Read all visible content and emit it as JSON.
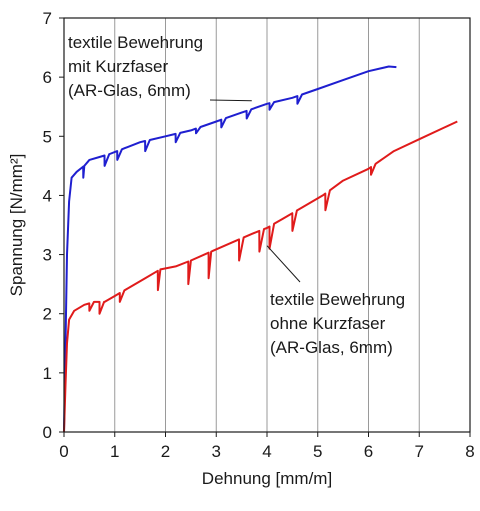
{
  "chart_data": {
    "type": "line",
    "xlabel": "Dehnung [mm/m]",
    "ylabel": "Spannung [N/mm²]",
    "xlim": [
      0,
      8
    ],
    "ylim": [
      0,
      7
    ],
    "xticks": [
      "0",
      "1",
      "2",
      "3",
      "4",
      "5",
      "6",
      "7",
      "8"
    ],
    "yticks": [
      "0",
      "1",
      "2",
      "3",
      "4",
      "5",
      "6",
      "7"
    ],
    "grid": "vertical",
    "series": [
      {
        "name": "textile Bewehrung mit Kurzfaser (AR-Glas, 6mm)",
        "color": "#1f1fd0",
        "points": [
          [
            0,
            0
          ],
          [
            0.03,
            1.5
          ],
          [
            0.06,
            3.0
          ],
          [
            0.1,
            3.9
          ],
          [
            0.15,
            4.3
          ],
          [
            0.25,
            4.4
          ],
          [
            0.4,
            4.5
          ],
          [
            0.5,
            4.6
          ],
          [
            0.7,
            4.65
          ],
          [
            0.9,
            4.7
          ],
          [
            1.2,
            4.8
          ],
          [
            1.5,
            4.9
          ],
          [
            2.0,
            5.0
          ],
          [
            2.5,
            5.1
          ],
          [
            3.0,
            5.25
          ],
          [
            3.5,
            5.4
          ],
          [
            4.0,
            5.55
          ],
          [
            4.5,
            5.65
          ],
          [
            5.0,
            5.8
          ],
          [
            5.5,
            5.95
          ],
          [
            6.0,
            6.1
          ],
          [
            6.4,
            6.18
          ],
          [
            6.55,
            6.17
          ]
        ],
        "drops": [
          [
            0.38,
            4.3
          ],
          [
            0.8,
            4.5
          ],
          [
            1.05,
            4.6
          ],
          [
            1.6,
            4.75
          ],
          [
            2.2,
            4.9
          ],
          [
            2.6,
            5.05
          ],
          [
            3.1,
            5.15
          ],
          [
            3.6,
            5.3
          ],
          [
            4.05,
            5.45
          ],
          [
            4.6,
            5.55
          ]
        ]
      },
      {
        "name": "textile Bewehrung ohne Kurzfaser (AR-Glas, 6mm)",
        "color": "#e01b1b",
        "points": [
          [
            0,
            0
          ],
          [
            0.03,
            0.8
          ],
          [
            0.06,
            1.5
          ],
          [
            0.1,
            1.9
          ],
          [
            0.2,
            2.05
          ],
          [
            0.4,
            2.15
          ],
          [
            0.6,
            2.2
          ],
          [
            0.8,
            2.2
          ],
          [
            1.0,
            2.3
          ],
          [
            1.3,
            2.45
          ],
          [
            1.6,
            2.6
          ],
          [
            1.9,
            2.75
          ],
          [
            2.2,
            2.8
          ],
          [
            2.5,
            2.9
          ],
          [
            2.9,
            3.05
          ],
          [
            3.3,
            3.2
          ],
          [
            3.7,
            3.35
          ],
          [
            4.0,
            3.45
          ],
          [
            4.3,
            3.6
          ],
          [
            4.7,
            3.8
          ],
          [
            5.1,
            4.0
          ],
          [
            5.5,
            4.25
          ],
          [
            6.0,
            4.45
          ],
          [
            6.5,
            4.75
          ],
          [
            7.0,
            4.95
          ],
          [
            7.5,
            5.15
          ],
          [
            7.75,
            5.25
          ]
        ],
        "drops": [
          [
            0.5,
            2.05
          ],
          [
            0.7,
            2.0
          ],
          [
            1.1,
            2.2
          ],
          [
            1.85,
            2.4
          ],
          [
            2.45,
            2.5
          ],
          [
            2.85,
            2.6
          ],
          [
            3.45,
            2.9
          ],
          [
            3.85,
            3.05
          ],
          [
            4.05,
            3.1
          ],
          [
            4.5,
            3.4
          ],
          [
            5.15,
            3.75
          ],
          [
            6.05,
            4.35
          ]
        ]
      }
    ],
    "annotations": [
      {
        "lines": [
          "textile Bewehrung",
          "mit Kurzfaser",
          "(AR-Glas, 6mm)"
        ],
        "target": [
          3.7,
          5.6
        ]
      },
      {
        "lines": [
          "textile Bewehrung",
          "ohne Kurzfaser",
          "(AR-Glas, 6mm)"
        ],
        "target": [
          4.0,
          3.15
        ]
      }
    ]
  }
}
